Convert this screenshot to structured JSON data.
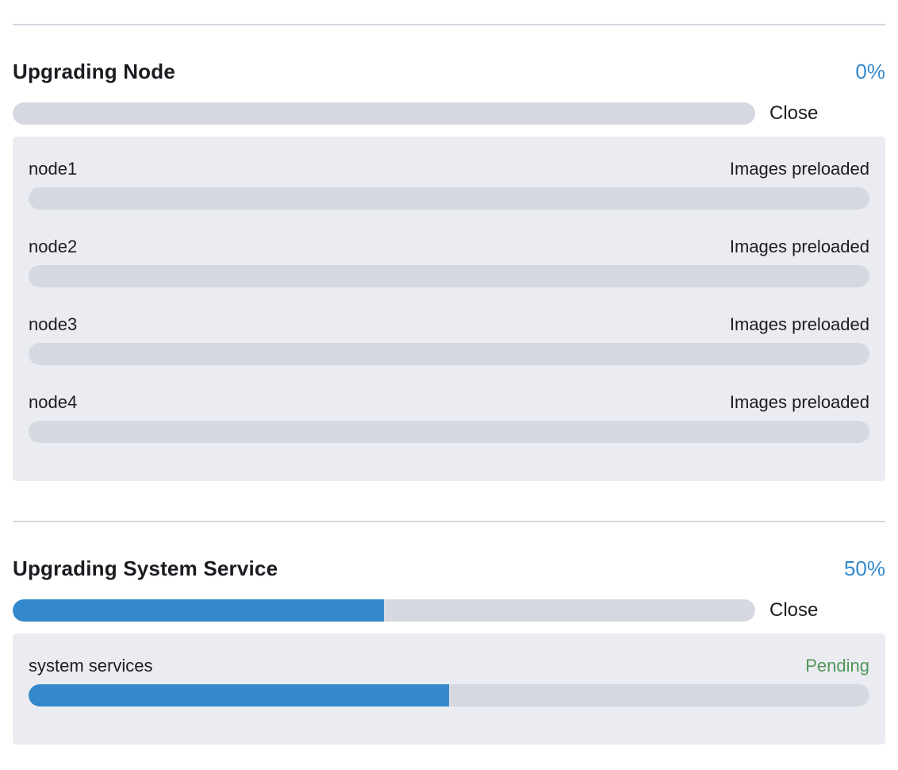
{
  "colors": {
    "accent_blue": "#3389CC",
    "status_green": "#52965A",
    "text_primary": "#1B1C21",
    "track_gray": "#D6D8E1",
    "panel_bg": "#EBECF1",
    "divider": "#D5D8E2"
  },
  "sections": [
    {
      "title": "Upgrading Node",
      "percent": "0%",
      "percent_value": 0,
      "close_label": "Close",
      "items": [
        {
          "name": "node1",
          "status": "Images preloaded",
          "progress": 0,
          "status_color": "#1B1C21"
        },
        {
          "name": "node2",
          "status": "Images preloaded",
          "progress": 0,
          "status_color": "#1B1C21"
        },
        {
          "name": "node3",
          "status": "Images preloaded",
          "progress": 0,
          "status_color": "#1B1C21"
        },
        {
          "name": "node4",
          "status": "Images preloaded",
          "progress": 0,
          "status_color": "#1B1C21"
        }
      ]
    },
    {
      "title": "Upgrading System Service",
      "percent": "50%",
      "percent_value": 50,
      "close_label": "Close",
      "items": [
        {
          "name": "system services",
          "status": "Pending",
          "progress": 50,
          "status_color": "#52965A"
        }
      ]
    }
  ]
}
